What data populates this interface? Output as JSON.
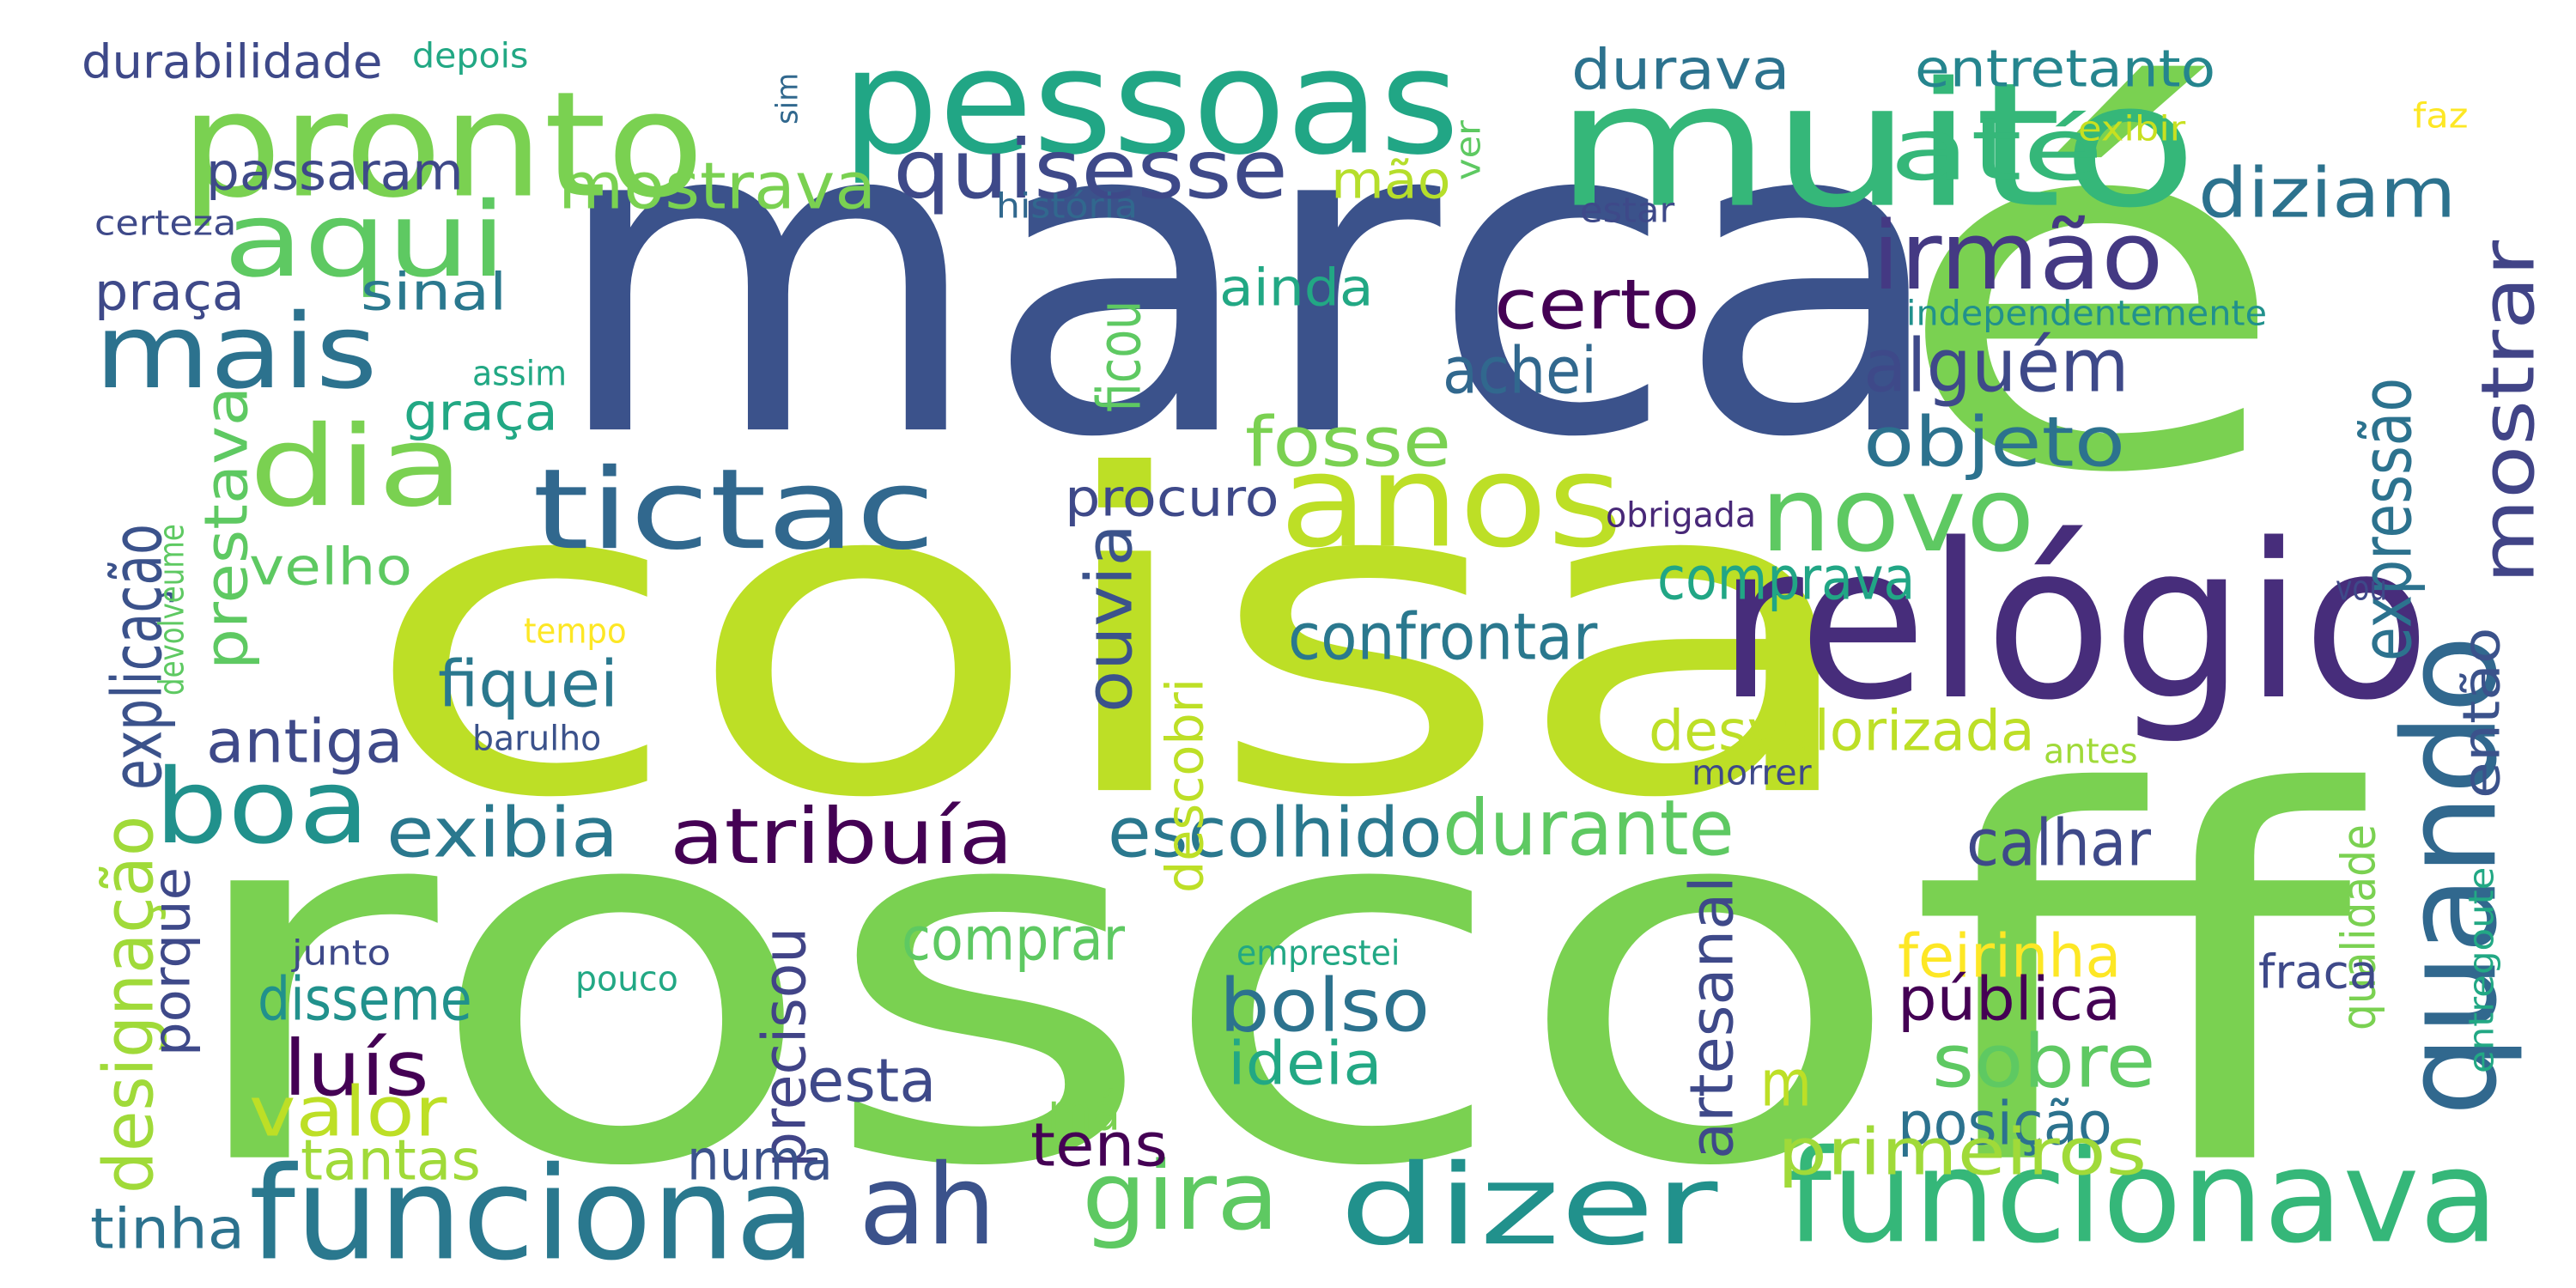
{
  "words": [
    {
      "text": "marca",
      "color": "#3b528b"
    },
    {
      "text": "é",
      "color": "#7ad151"
    },
    {
      "text": "coisa",
      "color": "#bddf26"
    },
    {
      "text": "roscoff",
      "color": "#7ad151"
    },
    {
      "text": "muito",
      "color": "#35b779"
    },
    {
      "text": "pessoas",
      "color": "#21a685"
    },
    {
      "text": "pronto",
      "color": "#7ad151"
    },
    {
      "text": "relógio",
      "color": "#472d7b"
    },
    {
      "text": "anos",
      "color": "#bddf26"
    },
    {
      "text": "tictac",
      "color": "#31688e"
    },
    {
      "text": "funcionava",
      "color": "#35b779"
    },
    {
      "text": "dizer",
      "color": "#21918c"
    },
    {
      "text": "funciona",
      "color": "#2a788e"
    },
    {
      "text": "ah",
      "color": "#3b528b"
    },
    {
      "text": "quando",
      "color": "#31688e"
    },
    {
      "text": "aqui",
      "color": "#5ec962"
    },
    {
      "text": "até",
      "color": "#35b779"
    },
    {
      "text": "irmão",
      "color": "#443983"
    },
    {
      "text": "mais",
      "color": "#2c728e"
    },
    {
      "text": "dia",
      "color": "#7ad151"
    },
    {
      "text": "novo",
      "color": "#5ec962"
    },
    {
      "text": "boa",
      "color": "#21918c"
    },
    {
      "text": "quisesse",
      "color": "#3e4989"
    },
    {
      "text": "gira",
      "color": "#5ec962"
    },
    {
      "text": "mostrar",
      "color": "#414487"
    },
    {
      "text": "expressão",
      "color": "#2c728e"
    },
    {
      "text": "explicação",
      "color": "#3b528b"
    },
    {
      "text": "designação",
      "color": "#a0da39"
    },
    {
      "text": "prestava",
      "color": "#5ec962"
    },
    {
      "text": "escolhido",
      "color": "#2a788e"
    },
    {
      "text": "durante",
      "color": "#5ec962"
    },
    {
      "text": "atribuía",
      "color": "#440154"
    },
    {
      "text": "exibia",
      "color": "#2a788e"
    },
    {
      "text": "durabilidade",
      "color": "#3e4989"
    },
    {
      "text": "depois",
      "color": "#22a884"
    },
    {
      "text": "sim",
      "color": "#31688e"
    },
    {
      "text": "durava",
      "color": "#2c728e"
    },
    {
      "text": "entretanto",
      "color": "#25858e"
    },
    {
      "text": "exibir",
      "color": "#c8e020"
    },
    {
      "text": "faz",
      "color": "#fde725"
    },
    {
      "text": "passaram",
      "color": "#3e4989"
    },
    {
      "text": "mostrava",
      "color": "#7ad151"
    },
    {
      "text": "ver",
      "color": "#5ec962"
    },
    {
      "text": "mão",
      "color": "#b5de2b"
    },
    {
      "text": "diziam",
      "color": "#2c728e"
    },
    {
      "text": "certeza",
      "color": "#3e4989"
    },
    {
      "text": "história",
      "color": "#31688e"
    },
    {
      "text": "estar",
      "color": "#3e4989"
    },
    {
      "text": "praça",
      "color": "#3e4989"
    },
    {
      "text": "sinal",
      "color": "#2a788e"
    },
    {
      "text": "ficou",
      "color": "#5ec962"
    },
    {
      "text": "ainda",
      "color": "#22a884"
    },
    {
      "text": "certo",
      "color": "#440154"
    },
    {
      "text": "independentemente",
      "color": "#21918c"
    },
    {
      "text": "assim",
      "color": "#22a884"
    },
    {
      "text": "graça",
      "color": "#22a884"
    },
    {
      "text": "achei",
      "color": "#31688e"
    },
    {
      "text": "alguém",
      "color": "#3e4989"
    },
    {
      "text": "fosse",
      "color": "#7ad151"
    },
    {
      "text": "objeto",
      "color": "#2c728e"
    },
    {
      "text": "procuro",
      "color": "#3e4989"
    },
    {
      "text": "obrigada",
      "color": "#482878"
    },
    {
      "text": "velho",
      "color": "#5ec962"
    },
    {
      "text": "devolveume",
      "color": "#5ec962"
    },
    {
      "text": "ouvia",
      "color": "#3b528b"
    },
    {
      "text": "comprava",
      "color": "#21a685"
    },
    {
      "text": "vou",
      "color": "#3e4989"
    },
    {
      "text": "tempo",
      "color": "#fde725"
    },
    {
      "text": "confrontar",
      "color": "#2a788e"
    },
    {
      "text": "fiquei",
      "color": "#2a788e"
    },
    {
      "text": "então",
      "color": "#3b528b"
    },
    {
      "text": "barulho",
      "color": "#3b528b"
    },
    {
      "text": "antiga",
      "color": "#3e4989"
    },
    {
      "text": "descobri",
      "color": "#bddf26"
    },
    {
      "text": "desvalorizada",
      "color": "#bddf26"
    },
    {
      "text": "antes",
      "color": "#a0da39"
    },
    {
      "text": "morrer",
      "color": "#3e4989"
    },
    {
      "text": "calhar",
      "color": "#3e4989"
    },
    {
      "text": "porque",
      "color": "#3e4989"
    },
    {
      "text": "qualidade",
      "color": "#7ad151"
    },
    {
      "text": "entregoute",
      "color": "#22a884"
    },
    {
      "text": "comprar",
      "color": "#5ec962"
    },
    {
      "text": "artesanal",
      "color": "#3e4989"
    },
    {
      "text": "feirinha",
      "color": "#fde725"
    },
    {
      "text": "junto",
      "color": "#3e4989"
    },
    {
      "text": "emprestei",
      "color": "#22a884"
    },
    {
      "text": "pouco",
      "color": "#22a884"
    },
    {
      "text": "fraca",
      "color": "#3e4989"
    },
    {
      "text": "disseme",
      "color": "#21918c"
    },
    {
      "text": "bolso",
      "color": "#2c728e"
    },
    {
      "text": "pública",
      "color": "#440154"
    },
    {
      "text": "luís",
      "color": "#440154"
    },
    {
      "text": "precisou",
      "color": "#414487"
    },
    {
      "text": "sobre",
      "color": "#5ec962"
    },
    {
      "text": "ideia",
      "color": "#22a884"
    },
    {
      "text": "m",
      "color": "#bddf26"
    },
    {
      "text": "valor",
      "color": "#bddf26"
    },
    {
      "text": "esta",
      "color": "#3e4989"
    },
    {
      "text": "má",
      "color": "#7ad151"
    },
    {
      "text": "posição",
      "color": "#2c728e"
    },
    {
      "text": "tantas",
      "color": "#a0da39"
    },
    {
      "text": "tens",
      "color": "#440154"
    },
    {
      "text": "numa",
      "color": "#3b528b"
    },
    {
      "text": "primeiros",
      "color": "#a0da39"
    },
    {
      "text": "tinha",
      "color": "#2c728e"
    }
  ]
}
